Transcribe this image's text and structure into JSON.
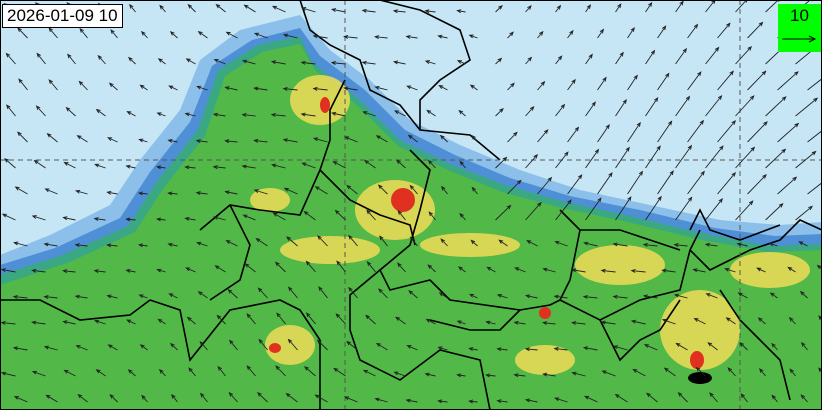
{
  "timestamp": "2026-01-09 10",
  "legend": {
    "value": "10",
    "unit_arrow": "wind-reference-arrow"
  },
  "colors": {
    "sea": "#c6e6f6",
    "low": "#4f8fd6",
    "mid": "#52b848",
    "high": "#f0dc58",
    "peak": "#e03020",
    "legend_bg": "#00ff00"
  }
}
